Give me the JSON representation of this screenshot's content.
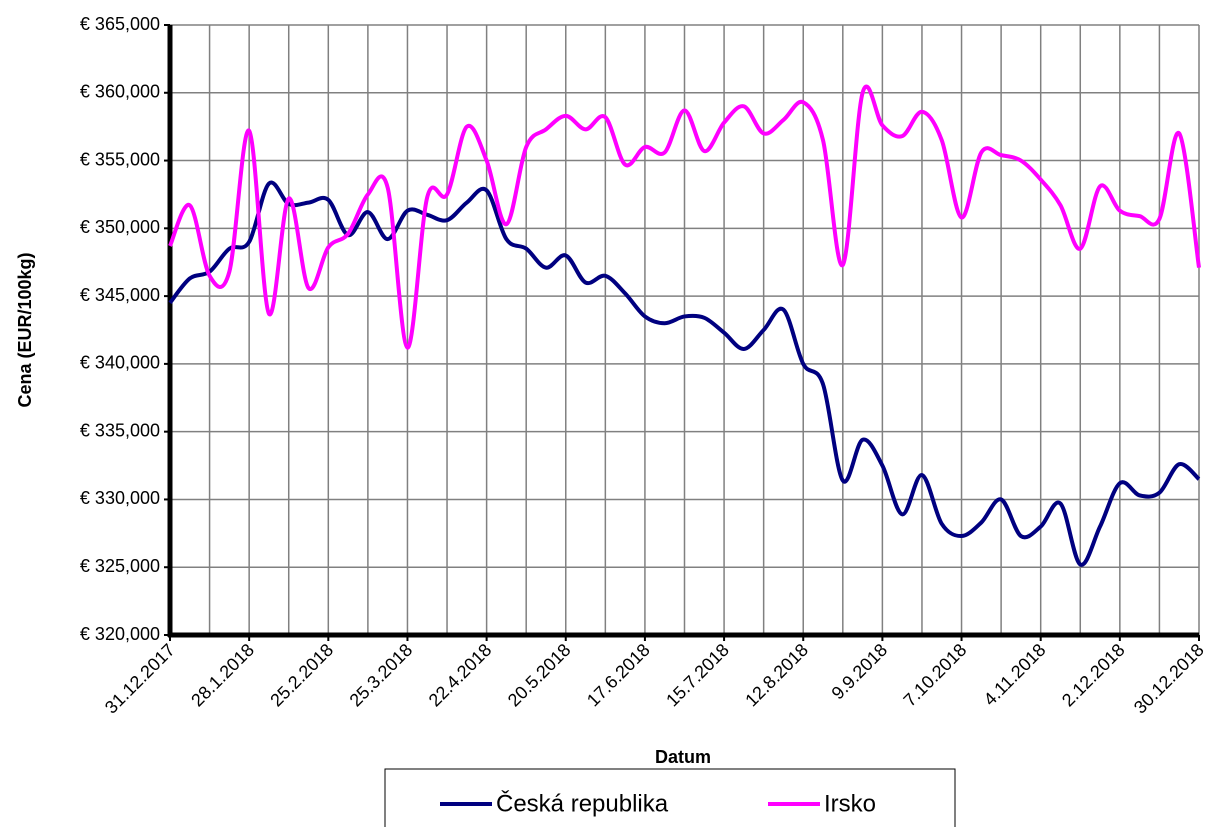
{
  "chart_data": {
    "type": "line",
    "x_label": "Datum",
    "y_label": "Cena (EUR/100kg)",
    "categories": [
      "31.12.2017",
      null,
      null,
      null,
      "28.1.2018",
      null,
      null,
      null,
      "25.2.2018",
      null,
      null,
      null,
      "25.3.2018",
      null,
      null,
      null,
      "22.4.2018",
      null,
      null,
      null,
      "20.5.2018",
      null,
      null,
      null,
      "17.6.2018",
      null,
      null,
      null,
      "15.7.2018",
      null,
      null,
      null,
      "12.8.2018",
      null,
      null,
      null,
      "9.9.2018",
      null,
      null,
      null,
      "7.10.2018",
      null,
      null,
      null,
      "4.11.2018",
      null,
      null,
      null,
      "2.12.2018",
      null,
      null,
      null,
      "30.12.2018"
    ],
    "series": [
      {
        "name": "Česká republika",
        "color": "#000080",
        "values": [
          344500,
          346300,
          346800,
          348500,
          349000,
          353300,
          351800,
          351900,
          352100,
          349500,
          351200,
          349200,
          351300,
          351000,
          350600,
          351900,
          352800,
          349200,
          348500,
          347100,
          348000,
          346000,
          346500,
          345200,
          343500,
          343000,
          343500,
          343400,
          342300,
          341100,
          342500,
          344000,
          340000,
          338500,
          331400,
          334400,
          332500,
          328900,
          331800,
          328200,
          327300,
          328300,
          330000,
          327300,
          328000,
          329700,
          325200,
          328000,
          331200,
          330300,
          330500,
          332600,
          331500
        ]
      },
      {
        "name": "Irsko",
        "color": "#ff00ff",
        "values": [
          348700,
          351700,
          346500,
          346800,
          357200,
          343700,
          352200,
          345600,
          348600,
          349600,
          352500,
          353000,
          341200,
          352300,
          352500,
          357500,
          355000,
          350300,
          356000,
          357300,
          358300,
          357300,
          358200,
          354700,
          356000,
          355600,
          358700,
          355700,
          357800,
          359000,
          357000,
          358000,
          359300,
          356500,
          347300,
          360000,
          357600,
          356800,
          358600,
          356500,
          350800,
          355600,
          355400,
          355000,
          353600,
          351700,
          348500,
          353100,
          351300,
          350900,
          350700,
          357000,
          347100
        ]
      }
    ],
    "ylim": [
      320000,
      365000
    ],
    "yticks": [
      {
        "value": 320000,
        "label": "€ 320,000"
      },
      {
        "value": 325000,
        "label": "€ 325,000"
      },
      {
        "value": 330000,
        "label": "€ 330,000"
      },
      {
        "value": 335000,
        "label": "€ 335,000"
      },
      {
        "value": 340000,
        "label": "€ 340,000"
      },
      {
        "value": 345000,
        "label": "€ 345,000"
      },
      {
        "value": 350000,
        "label": "€ 350,000"
      },
      {
        "value": 355000,
        "label": "€ 355,000"
      },
      {
        "value": 360000,
        "label": "€ 360,000"
      },
      {
        "value": 365000,
        "label": "€ 365,000"
      }
    ],
    "grid": true,
    "legend": "bottom"
  }
}
